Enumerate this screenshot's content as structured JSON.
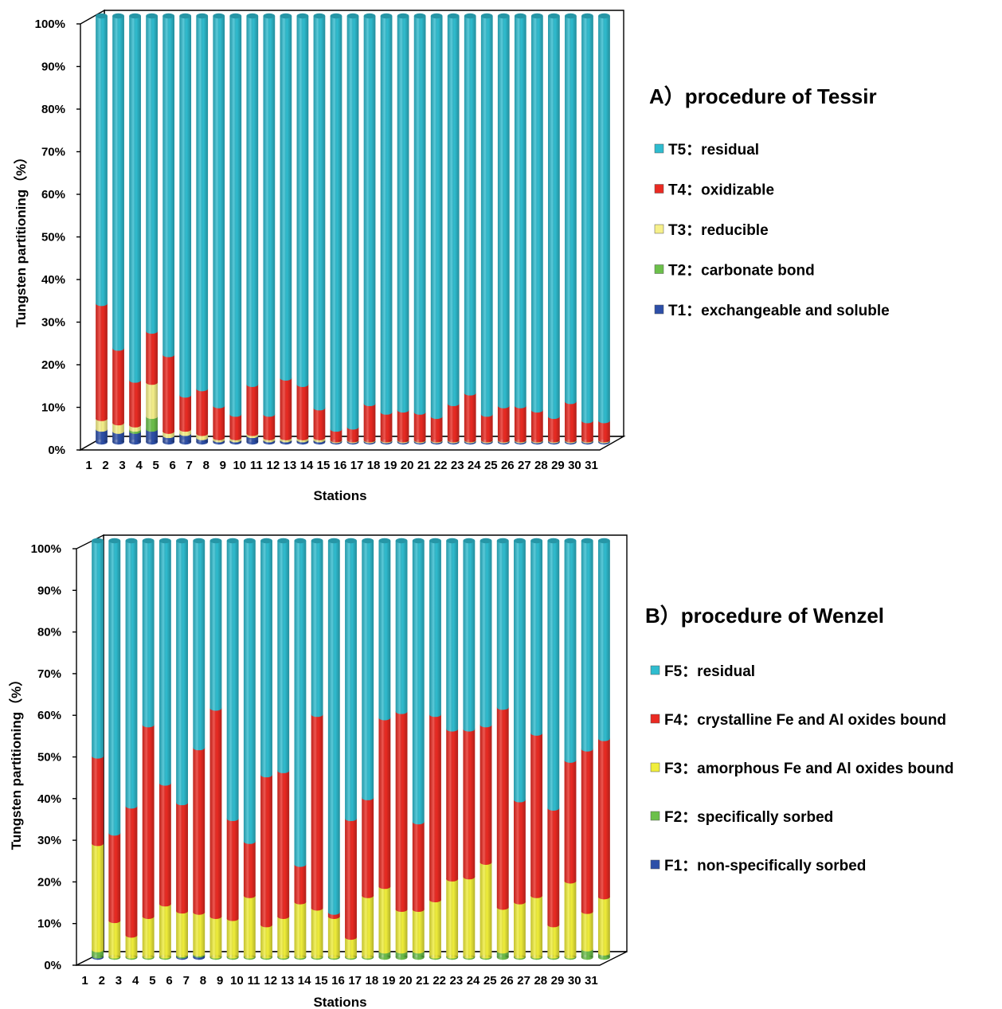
{
  "colors": {
    "residual": "#2fbccf",
    "red": "#ea2a22",
    "yellow": "#f0ee3a",
    "yellow_light": "#f6f08a",
    "green": "#6cc04a",
    "blue": "#2d4fa8"
  },
  "chart_data": [
    {
      "type": "bar",
      "stacked": true,
      "percent": true,
      "title": "A）procedure of Tessir",
      "xlabel": "Stations",
      "ylabel": "Tungsten partitioning（%）",
      "ylim": [
        0,
        100
      ],
      "yticks": [
        "0%",
        "10%",
        "20%",
        "30%",
        "40%",
        "50%",
        "60%",
        "70%",
        "80%",
        "90%",
        "100%"
      ],
      "categories": [
        "1",
        "2",
        "3",
        "4",
        "5",
        "6",
        "7",
        "8",
        "9",
        "10",
        "11",
        "12",
        "13",
        "14",
        "15",
        "16",
        "17",
        "18",
        "19",
        "20",
        "21",
        "22",
        "23",
        "24",
        "25",
        "26",
        "27",
        "28",
        "29",
        "30",
        "31"
      ],
      "series": [
        {
          "name": "T1：exchangeable and soluble",
          "key": "T1",
          "color_key": "blue",
          "values": [
            3,
            2.5,
            2.5,
            3,
            1.5,
            2,
            1,
            0.5,
            0.5,
            1.5,
            0.5,
            0.5,
            0.5,
            0.5,
            0.3,
            0.3,
            0.3,
            0.3,
            0.3,
            0.3,
            0.3,
            0.3,
            0.3,
            0.3,
            0.3,
            0.3,
            0.3,
            0.3,
            0.3,
            0.3,
            0.3
          ]
        },
        {
          "name": "T2：carbonate bond",
          "key": "T2",
          "color_key": "green",
          "values": [
            0,
            0,
            0.5,
            3,
            0,
            0,
            0,
            0,
            0,
            0,
            0,
            0,
            0,
            0,
            0,
            0,
            0,
            0,
            0,
            0,
            0,
            0,
            0,
            0,
            0,
            0,
            0,
            0,
            0,
            0,
            0
          ]
        },
        {
          "name": "T3：reducible",
          "key": "T3",
          "color_key": "yellow_light",
          "values": [
            2.5,
            2,
            1,
            8,
            1,
            1,
            1,
            0.5,
            0.5,
            0.5,
            0.5,
            0.5,
            0.5,
            0.5,
            0.2,
            0.2,
            0.2,
            0.2,
            0.2,
            0.2,
            0.2,
            0.2,
            0.2,
            0.2,
            0.2,
            0.2,
            0.2,
            0.2,
            0.2,
            0.2,
            0.2
          ]
        },
        {
          "name": "T4：oxidizable",
          "key": "T4",
          "color_key": "red",
          "values": [
            27,
            17.5,
            10.5,
            12,
            18,
            8,
            10.5,
            7.5,
            5.5,
            11.5,
            5.5,
            14,
            12.5,
            7,
            2.5,
            3,
            8.5,
            6.5,
            7,
            6.5,
            5.5,
            8.5,
            11,
            6,
            8,
            8,
            7,
            5.5,
            9,
            4.5,
            4.5
          ]
        },
        {
          "name": "T5：residual",
          "key": "T5",
          "color_key": "residual",
          "values": [
            67.5,
            78,
            85.5,
            74,
            79.5,
            89,
            87.5,
            91.5,
            93.5,
            86.5,
            93.5,
            85,
            86.5,
            92,
            97,
            96.5,
            91,
            93,
            92.5,
            93,
            94,
            91,
            88.5,
            93.5,
            91.5,
            91.5,
            92.5,
            94,
            90.5,
            95,
            95
          ]
        }
      ]
    },
    {
      "type": "bar",
      "stacked": true,
      "percent": true,
      "title": "B）procedure of Wenzel",
      "xlabel": "Stations",
      "ylabel": "Tungsten partitioning（%）",
      "ylim": [
        0,
        100
      ],
      "yticks": [
        "0%",
        "10%",
        "20%",
        "30%",
        "40%",
        "50%",
        "60%",
        "70%",
        "80%",
        "90%",
        "100%"
      ],
      "categories": [
        "1",
        "2",
        "3",
        "4",
        "5",
        "6",
        "7",
        "8",
        "9",
        "10",
        "11",
        "12",
        "13",
        "14",
        "15",
        "16",
        "17",
        "18",
        "19",
        "20",
        "21",
        "22",
        "23",
        "24",
        "25",
        "26",
        "27",
        "28",
        "29",
        "30",
        "31"
      ],
      "series": [
        {
          "name": "F1：non-specifically sorbed",
          "key": "F1",
          "color_key": "blue",
          "values": [
            0.3,
            0,
            0,
            0,
            0,
            0.3,
            0.5,
            0,
            0,
            0,
            0,
            0,
            0,
            0,
            0,
            0,
            0,
            0,
            0,
            0,
            0,
            0,
            0,
            0,
            0,
            0,
            0,
            0,
            0,
            0,
            0
          ]
        },
        {
          "name": "F2：specifically sorbed",
          "key": "F2",
          "color_key": "green",
          "values": [
            1.5,
            0.3,
            0.3,
            0.3,
            0.3,
            0.3,
            0.3,
            0.3,
            0.3,
            0.3,
            0.3,
            0.3,
            0.3,
            0.3,
            0.3,
            0.3,
            0.3,
            1.5,
            1.5,
            1.5,
            0.3,
            0.3,
            0.3,
            0.3,
            1.5,
            0.3,
            0.3,
            0.3,
            0.3,
            2,
            1
          ]
        },
        {
          "name": "F3：amorphous Fe and Al oxides bound",
          "key": "F3",
          "color_key": "yellow",
          "values": [
            25.5,
            8.5,
            5,
            9.5,
            12.5,
            10.5,
            10,
            9.5,
            9,
            14.5,
            7.5,
            9.5,
            13,
            11.5,
            9.5,
            4.5,
            14.5,
            15.5,
            10,
            10,
            13.5,
            18.5,
            19,
            22.5,
            10.5,
            13,
            14.5,
            7.5,
            18,
            9,
            13.5
          ]
        },
        {
          "name": "F4：crystalline Fe and Al oxides bound",
          "key": "F4",
          "color_key": "red",
          "values": [
            21,
            21,
            31,
            46,
            29,
            26,
            39.5,
            50,
            24,
            13,
            36,
            35,
            9,
            46.5,
            1,
            28.5,
            23.5,
            40.5,
            47.5,
            21,
            44.5,
            36,
            35.5,
            33,
            48,
            24.5,
            39,
            28,
            29,
            39,
            38
          ]
        },
        {
          "name": "F5：residual",
          "key": "F5",
          "color_key": "residual",
          "values": [
            51.7,
            70.2,
            63.7,
            44.2,
            58.2,
            62.9,
            49.7,
            40.2,
            66.7,
            72.2,
            56.2,
            55.2,
            77.7,
            41.7,
            89.2,
            66.7,
            61.7,
            42.5,
            41,
            67.5,
            41.7,
            45.2,
            45.2,
            44.2,
            40,
            62.2,
            46.2,
            64.2,
            52.7,
            50,
            47.5
          ]
        }
      ]
    }
  ]
}
